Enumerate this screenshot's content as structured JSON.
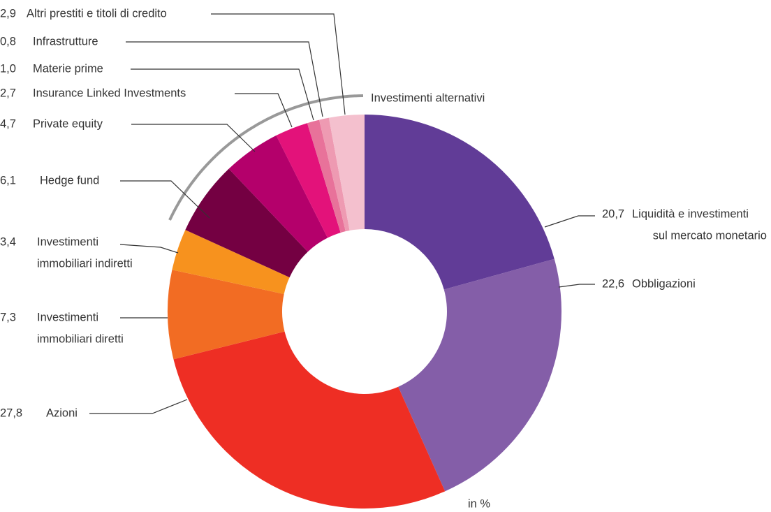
{
  "chart_data": {
    "type": "donut",
    "annotation": "Investimenti alternativi",
    "note": "in %",
    "categories": [
      [
        "Liquidità e investimenti",
        "sul mercato monetario"
      ],
      [
        "Obbligazioni"
      ],
      [
        "Azioni"
      ],
      [
        "Investimenti",
        "immobiliari diretti"
      ],
      [
        "Investimenti",
        "immobiliari indiretti"
      ],
      [
        "Hedge fund"
      ],
      [
        "Private equity"
      ],
      [
        "Insurance Linked Investments"
      ],
      [
        "Materie prime"
      ],
      [
        "Infrastrutture"
      ],
      [
        "Altri prestiti e titoli di credito"
      ]
    ],
    "values": [
      20.7,
      22.6,
      27.8,
      7.3,
      3.4,
      6.1,
      4.7,
      2.7,
      1.0,
      0.8,
      2.9
    ],
    "value_labels": [
      "20,7",
      "22,6",
      "27,8",
      "7,3",
      "3,4",
      "6,1",
      "4,7",
      "2,7",
      "1,0",
      "0,8",
      "2,9"
    ],
    "colors": [
      "#613c97",
      "#845ea8",
      "#ee2e24",
      "#f26c23",
      "#f7921e",
      "#740042",
      "#b4006b",
      "#e3127a",
      "#e8729a",
      "#ee9ab2",
      "#f4c0ce"
    ]
  }
}
